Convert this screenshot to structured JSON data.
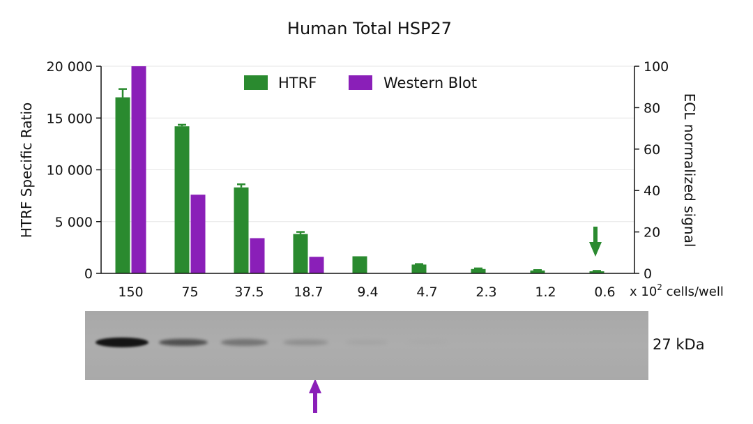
{
  "chart_data": {
    "type": "bar",
    "title": "Human Total HSP27",
    "categories": [
      "150",
      "75",
      "37.5",
      "18.7",
      "9.4",
      "4.7",
      "2.3",
      "1.2",
      "0.6"
    ],
    "x_unit_prefix": "x 10",
    "x_unit_exponent": "2",
    "x_unit_suffix": " cells/well",
    "y_left": {
      "label": "HTRF Specific Ratio",
      "range": [
        0,
        20000
      ],
      "ticks": [
        0,
        5000,
        10000,
        15000,
        20000
      ],
      "tick_labels": [
        "0",
        "5 000",
        "10 000",
        "15 000",
        "20 000"
      ]
    },
    "y_right": {
      "label": "ECL normalized signal",
      "range": [
        0,
        100
      ],
      "ticks": [
        0,
        20,
        40,
        60,
        80,
        100
      ],
      "tick_labels": [
        "0",
        "20",
        "40",
        "60",
        "80",
        "100"
      ]
    },
    "series": [
      {
        "name": "HTRF",
        "axis": "left",
        "color": "#2a8a2f",
        "values": [
          17000,
          14200,
          8300,
          3800,
          1650,
          850,
          420,
          280,
          200
        ],
        "error": [
          800,
          150,
          300,
          200,
          0,
          50,
          60,
          40,
          40
        ]
      },
      {
        "name": "Western Blot",
        "axis": "right",
        "color": "#8a1fb8",
        "values": [
          100,
          38,
          17,
          8,
          0,
          0,
          0,
          0,
          0
        ]
      }
    ],
    "legend_position": "top-center",
    "grid": true,
    "annotations": [
      {
        "type": "arrow",
        "color": "#2a8a2f",
        "category": "0.6",
        "direction": "down"
      },
      {
        "type": "arrow",
        "color": "#8a1fb8",
        "lane": "18.7",
        "direction": "up"
      }
    ],
    "blot": {
      "label": "27 kDa",
      "band_intensity": [
        1.0,
        0.62,
        0.45,
        0.3,
        0.12,
        0.04,
        0,
        0,
        0
      ]
    }
  }
}
